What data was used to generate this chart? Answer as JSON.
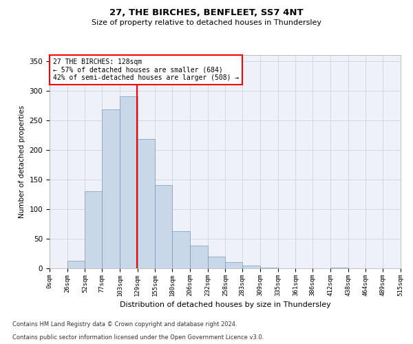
{
  "title1": "27, THE BIRCHES, BENFLEET, SS7 4NT",
  "title2": "Size of property relative to detached houses in Thundersley",
  "xlabel": "Distribution of detached houses by size in Thundersley",
  "ylabel": "Number of detached properties",
  "footnote1": "Contains HM Land Registry data © Crown copyright and database right 2024.",
  "footnote2": "Contains public sector information licensed under the Open Government Licence v3.0.",
  "annotation_line1": "27 THE BIRCHES: 128sqm",
  "annotation_line2": "← 57% of detached houses are smaller (684)",
  "annotation_line3": "42% of semi-detached houses are larger (508) →",
  "bin_labels": [
    "0sqm",
    "26sqm",
    "52sqm",
    "77sqm",
    "103sqm",
    "129sqm",
    "155sqm",
    "180sqm",
    "206sqm",
    "232sqm",
    "258sqm",
    "283sqm",
    "309sqm",
    "335sqm",
    "361sqm",
    "386sqm",
    "412sqm",
    "438sqm",
    "464sqm",
    "489sqm",
    "515sqm"
  ],
  "bar_values": [
    0,
    13,
    130,
    268,
    290,
    218,
    140,
    63,
    38,
    20,
    11,
    5,
    1,
    0,
    0,
    0,
    1,
    0,
    0,
    0
  ],
  "bin_edges": [
    0,
    26,
    52,
    77,
    103,
    129,
    155,
    180,
    206,
    232,
    258,
    283,
    309,
    335,
    361,
    386,
    412,
    438,
    464,
    489,
    515
  ],
  "bar_color": "#c8d8e8",
  "bar_edge_color": "#7799bb",
  "grid_color": "#d0d8e8",
  "background_color": "#eef2f8",
  "red_line_x": 128,
  "ylim": [
    0,
    360
  ],
  "yticks": [
    0,
    50,
    100,
    150,
    200,
    250,
    300,
    350
  ]
}
